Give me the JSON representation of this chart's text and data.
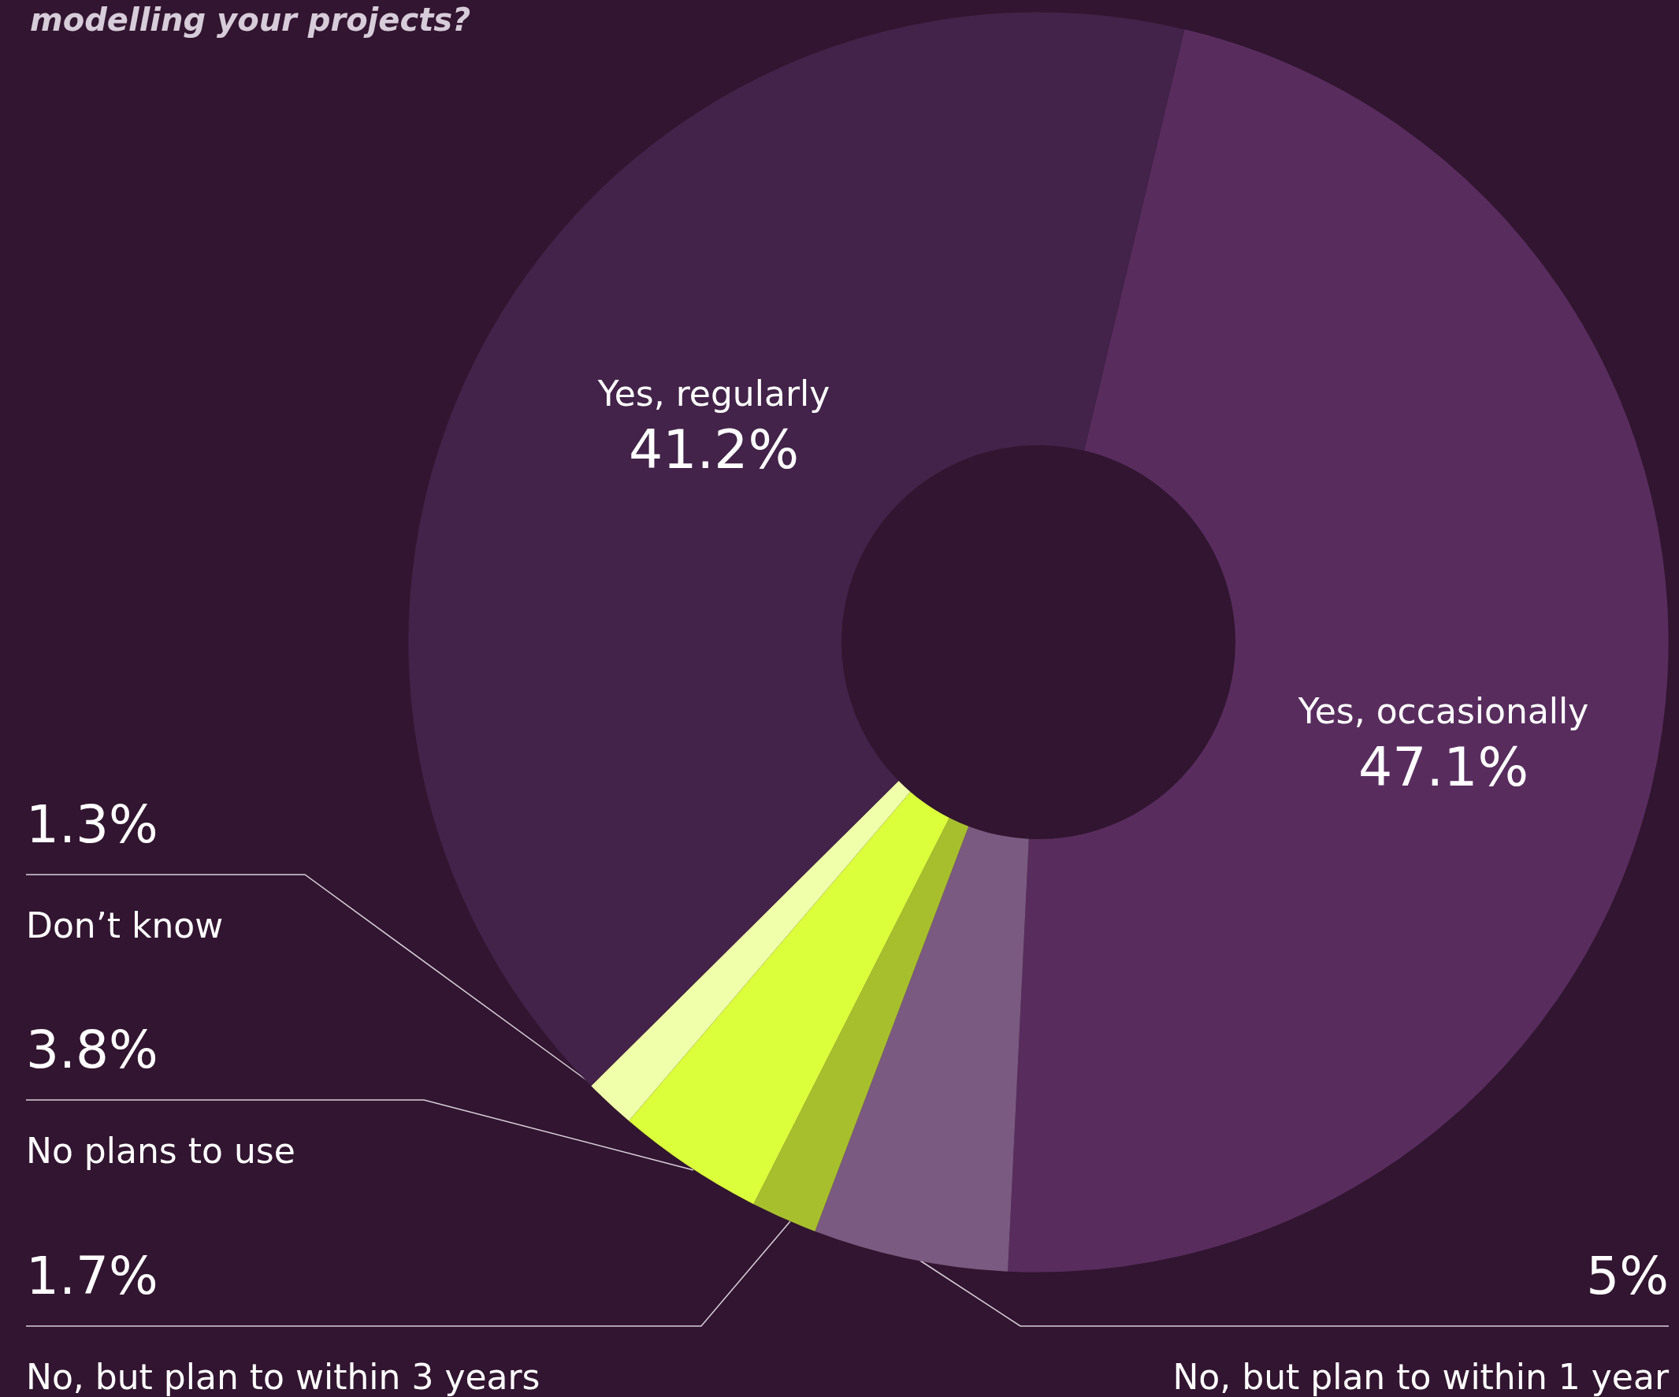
{
  "chart_data": {
    "type": "donut",
    "title": "modelling your projects?",
    "categories": [
      "Yes, occasionally",
      "No, but plan to within 1 year",
      "No, but plan to within 3 years",
      "No plans to use",
      "Don’t know",
      "Yes, regularly"
    ],
    "values": [
      47.1,
      5,
      1.7,
      3.8,
      1.3,
      41.2
    ],
    "value_labels": [
      "47.1%",
      "5%",
      "1.7%",
      "3.8%",
      "1.3%",
      "41.2%"
    ],
    "colors": [
      "#582d5e",
      "#7a5a80",
      "#a8bf2d",
      "#dbff3b",
      "#f0ffaa",
      "#432349"
    ],
    "legend": false
  }
}
